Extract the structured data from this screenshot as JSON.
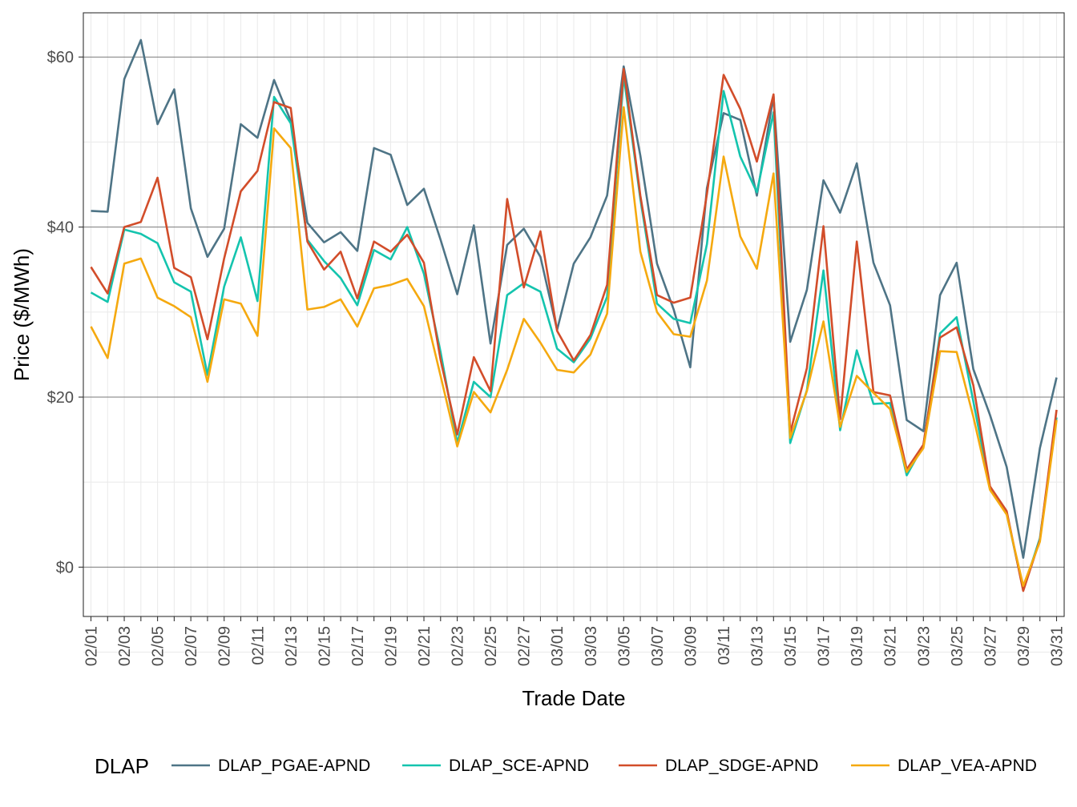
{
  "chart_data": {
    "type": "line",
    "title": "",
    "xlabel": "Trade Date",
    "ylabel": "Price ($/MWh)",
    "ylim": [
      -5.8,
      65.2
    ],
    "grid": true,
    "legend": {
      "title": "DLAP",
      "position": "bottom"
    },
    "y_ticks": [
      {
        "value": 0,
        "label": "$0"
      },
      {
        "value": 20,
        "label": "$20"
      },
      {
        "value": 40,
        "label": "$40"
      },
      {
        "value": 60,
        "label": "$60"
      }
    ],
    "x_tick_labels": [
      "02/01",
      "02/03",
      "02/05",
      "02/07",
      "02/09",
      "02/11",
      "02/13",
      "02/15",
      "02/17",
      "02/19",
      "02/21",
      "02/23",
      "02/25",
      "02/27",
      "03/01",
      "03/03",
      "03/05",
      "03/07",
      "03/09",
      "03/11",
      "03/13",
      "03/15",
      "03/17",
      "03/19",
      "03/21",
      "03/23",
      "03/25",
      "03/27",
      "03/29",
      "03/31"
    ],
    "x": [
      "02/01",
      "02/02",
      "02/03",
      "02/04",
      "02/05",
      "02/06",
      "02/07",
      "02/08",
      "02/09",
      "02/10",
      "02/11",
      "02/12",
      "02/13",
      "02/14",
      "02/15",
      "02/16",
      "02/17",
      "02/18",
      "02/19",
      "02/20",
      "02/21",
      "02/22",
      "02/23",
      "02/24",
      "02/25",
      "02/26",
      "02/27",
      "02/28",
      "03/01",
      "03/02",
      "03/03",
      "03/04",
      "03/05",
      "03/06",
      "03/07",
      "03/08",
      "03/09",
      "03/10",
      "03/11",
      "03/12",
      "03/13",
      "03/14",
      "03/15",
      "03/16",
      "03/17",
      "03/18",
      "03/19",
      "03/20",
      "03/21",
      "03/22",
      "03/23",
      "03/24",
      "03/25",
      "03/26",
      "03/27",
      "03/28",
      "03/29",
      "03/30",
      "03/31"
    ],
    "series": [
      {
        "name": "DLAP_PGAE-APND",
        "color": "#4e7486",
        "values": [
          41.9,
          41.8,
          57.4,
          62.0,
          52.1,
          56.2,
          42.2,
          36.5,
          39.8,
          52.1,
          50.5,
          57.3,
          52.5,
          40.5,
          38.2,
          39.4,
          37.2,
          49.3,
          48.5,
          42.6,
          44.5,
          38.5,
          32.1,
          40.2,
          26.3,
          37.9,
          39.8,
          36.5,
          27.9,
          35.7,
          38.8,
          43.7,
          58.9,
          48.4,
          35.7,
          30.3,
          23.5,
          44.6,
          53.4,
          52.6,
          43.7,
          55.4,
          26.5,
          32.6,
          45.5,
          41.7,
          47.5,
          35.8,
          30.8,
          17.3,
          16.0,
          32.0,
          35.8,
          23.3,
          17.9,
          11.8,
          1.1,
          14.0,
          22.3
        ]
      },
      {
        "name": "DLAP_SCE-APND",
        "color": "#14c4ae",
        "values": [
          32.3,
          31.2,
          39.7,
          39.2,
          38.1,
          33.5,
          32.4,
          22.6,
          33.0,
          38.8,
          31.3,
          55.3,
          52.2,
          38.5,
          36.0,
          34.0,
          30.8,
          37.3,
          36.2,
          40.0,
          34.5,
          25.3,
          14.6,
          21.8,
          20.0,
          32.0,
          33.4,
          32.4,
          25.7,
          24.1,
          26.9,
          31.8,
          57.8,
          43.3,
          31.0,
          29.2,
          28.7,
          38.0,
          56.0,
          48.3,
          44.1,
          53.5,
          14.6,
          20.8,
          34.9,
          16.1,
          25.5,
          19.2,
          19.3,
          10.8,
          14.3,
          27.5,
          29.4,
          19.5,
          9.4,
          6.3,
          -2.6,
          3.4,
          17.6
        ]
      },
      {
        "name": "DLAP_SDGE-APND",
        "color": "#d24d2a",
        "values": [
          35.3,
          32.2,
          40.0,
          40.6,
          45.8,
          35.2,
          34.1,
          26.8,
          36.3,
          44.2,
          46.6,
          54.7,
          54.0,
          38.3,
          35.0,
          37.1,
          31.6,
          38.3,
          37.1,
          39.1,
          35.8,
          24.4,
          15.6,
          24.7,
          20.7,
          43.3,
          32.9,
          39.5,
          27.8,
          24.3,
          27.3,
          33.2,
          58.6,
          43.7,
          32.0,
          31.1,
          31.7,
          43.9,
          57.9,
          53.9,
          47.7,
          55.6,
          15.8,
          23.4,
          40.1,
          17.4,
          38.3,
          20.6,
          20.2,
          11.5,
          14.4,
          27.0,
          28.2,
          21.4,
          9.5,
          6.6,
          -2.8,
          3.2,
          18.5
        ]
      },
      {
        "name": "DLAP_VEA-APND",
        "color": "#f5a90f",
        "values": [
          28.3,
          24.6,
          35.7,
          36.3,
          31.7,
          30.7,
          29.4,
          21.8,
          31.5,
          31.0,
          27.2,
          51.6,
          49.3,
          30.3,
          30.6,
          31.5,
          28.3,
          32.8,
          33.2,
          33.9,
          30.7,
          22.5,
          14.2,
          20.6,
          18.2,
          23.2,
          29.2,
          26.4,
          23.2,
          22.9,
          25.0,
          29.8,
          54.1,
          37.1,
          30.0,
          27.4,
          27.1,
          33.7,
          48.3,
          38.9,
          35.1,
          46.3,
          15.2,
          20.7,
          28.9,
          16.5,
          22.5,
          20.5,
          18.6,
          11.2,
          14.0,
          25.4,
          25.3,
          17.7,
          9.1,
          6.2,
          -2.2,
          3.0,
          17.3
        ]
      }
    ]
  }
}
